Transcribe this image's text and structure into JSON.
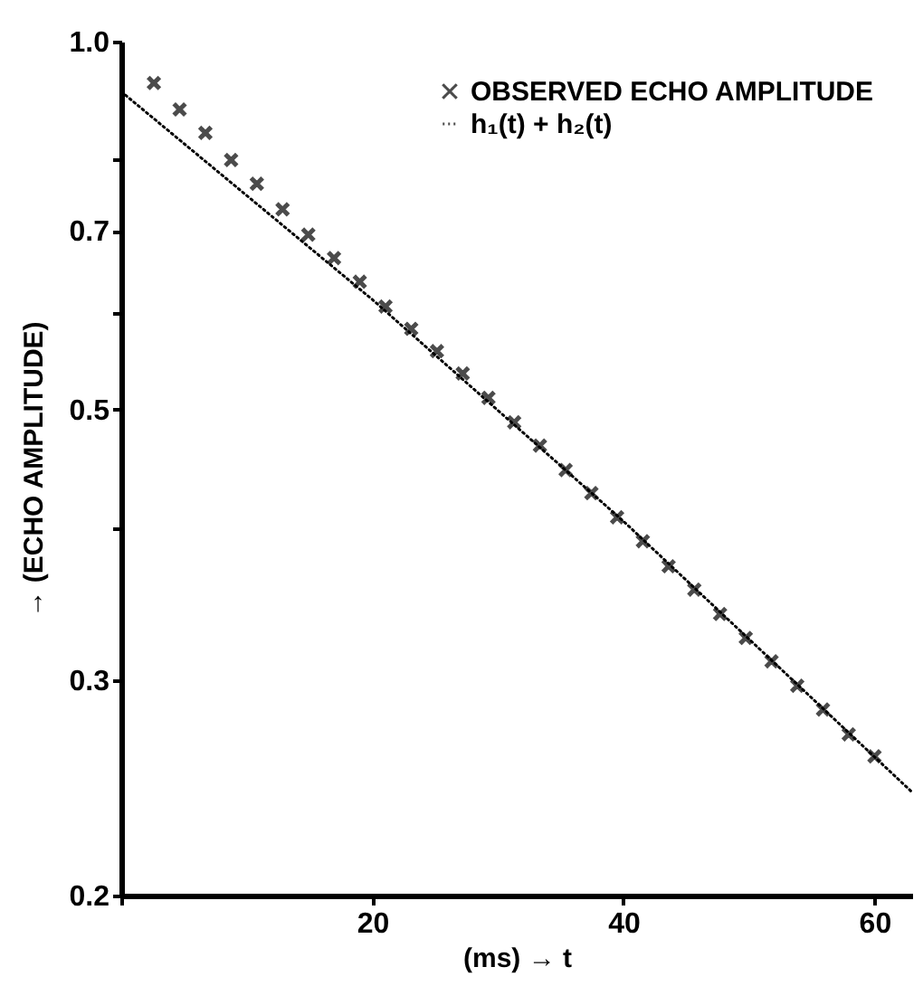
{
  "chart_data": {
    "type": "scatter",
    "xlabel": "(ms) → t",
    "ylabel": "→ (ECHO AMPLITUDE)",
    "log": "y",
    "grid": false,
    "legend": "top right",
    "xlim": [
      0,
      63
    ],
    "xticks": [
      {
        "value": 0,
        "label": null
      },
      20,
      40,
      60
    ],
    "ylim": [
      0.2,
      1.0
    ],
    "yticks": [
      0.2,
      0.3,
      {
        "value": 0.4,
        "label": null
      },
      0.5,
      {
        "value": 0.6,
        "label": null
      },
      0.7,
      {
        "value": 0.8,
        "label": null
      },
      {
        "value": 1.0,
        "label": "1.0"
      }
    ],
    "series": [
      {
        "name": "OBSERVED ECHO AMPLITUDE",
        "color": "#000000",
        "marker": "cross",
        "line_style": "solid",
        "x": [
          2.6,
          4.65,
          6.7,
          8.75,
          10.8,
          12.85,
          14.9,
          16.95,
          19.0,
          21.05,
          23.1,
          25.15,
          27.2,
          29.25,
          31.3,
          33.35,
          35.4,
          37.45,
          39.5,
          41.55,
          43.6,
          45.65,
          47.7,
          49.75,
          51.8,
          53.85,
          55.9,
          57.95,
          60.0
        ],
        "values": [
          0.925,
          0.88,
          0.842,
          0.8,
          0.765,
          0.729,
          0.695,
          0.665,
          0.636,
          0.607,
          0.582,
          0.558,
          0.535,
          0.511,
          0.488,
          0.467,
          0.446,
          0.427,
          0.408,
          0.39,
          0.372,
          0.356,
          0.34,
          0.325,
          0.311,
          0.297,
          0.284,
          0.271,
          0.26
        ]
      },
      {
        "name": "h₁(t) + h₂(t)",
        "type": "line",
        "color": "#000000",
        "line_style": "dotted",
        "x": [
          0,
          20,
          40,
          63
        ],
        "values": [
          0.91,
          0.615,
          0.405,
          0.243
        ]
      }
    ]
  }
}
